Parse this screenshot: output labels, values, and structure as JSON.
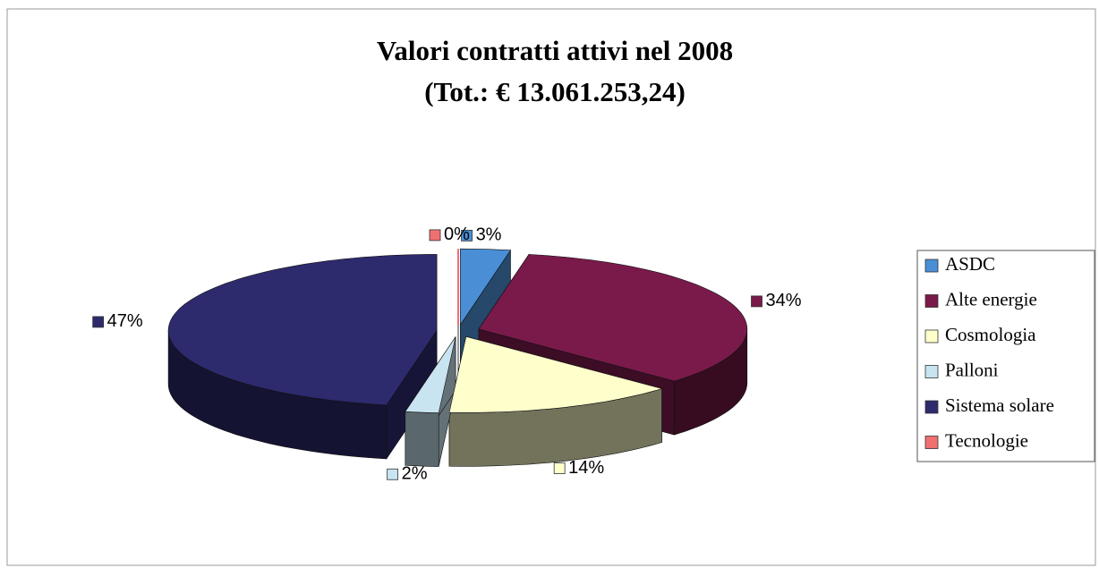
{
  "chart_data": {
    "type": "pie",
    "title": "Valori contratti attivi nel 2008",
    "subtitle": "(Tot.: € 13.061.253,24)",
    "categories": [
      "ASDC",
      "Alte energie",
      "Cosmologia",
      "Palloni",
      "Sistema solare",
      "Tecnologie"
    ],
    "values": [
      3,
      34,
      14,
      2,
      47,
      0
    ],
    "value_labels": [
      "3%",
      "34%",
      "14%",
      "2%",
      "47%",
      "0%"
    ],
    "colors": [
      "#4a8fd6",
      "#7a1a4a",
      "#ffffcc",
      "#c8e4f0",
      "#2e2a6e",
      "#f07070"
    ],
    "legend": "right"
  }
}
